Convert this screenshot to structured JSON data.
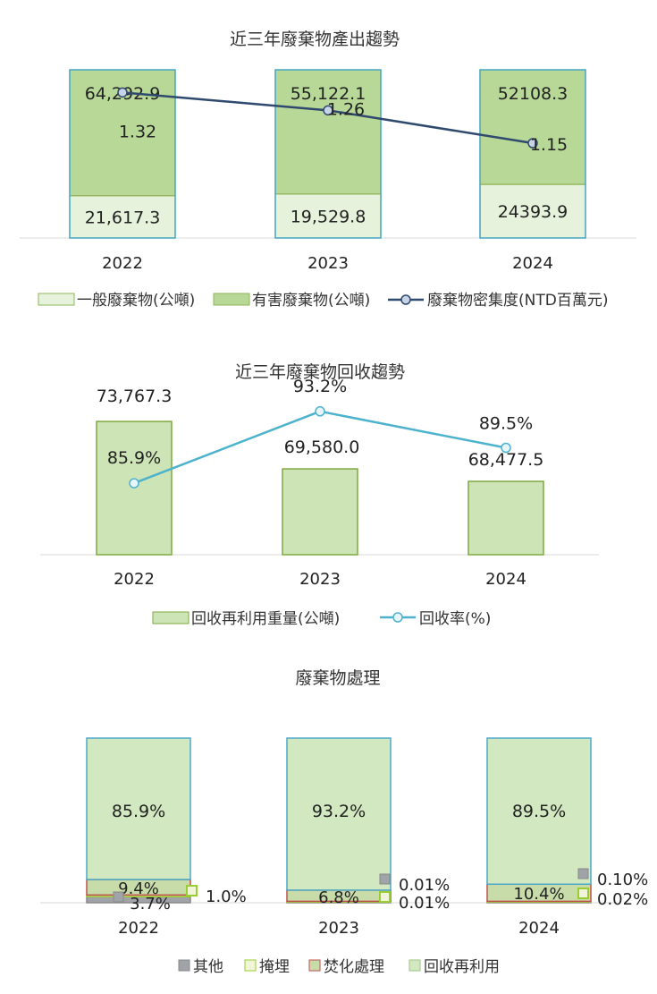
{
  "colors": {
    "general_fill": "#e6f2dc",
    "general_stroke": "#8fb55a",
    "hazardous_fill": "#b8d898",
    "frame_stroke": "#4aa8c8",
    "density_line": "#2f4a6e",
    "recycle_fill": "#cde4b6",
    "recycle_stroke": "#7fa840",
    "rate_line": "#4db3cc",
    "other_fill": "#a0a4a8",
    "landfill_fill": "#f0f5d8",
    "landfill_stroke": "#9acd32",
    "incineration_fill": "#c8dcaa",
    "incineration_stroke": "#c0504d",
    "reuse_fill": "#d2e8c0",
    "axis_line": "#d9d9d9"
  },
  "chart_data": [
    {
      "type": "bar",
      "stacked": true,
      "title": "近三年廢棄物產出趨勢",
      "categories": [
        "2022",
        "2023",
        "2024"
      ],
      "series": [
        {
          "name": "一般廢棄物(公噸)",
          "values": [
            21617.3,
            19529.8,
            24393.9
          ],
          "labels": [
            "21,617.3",
            "19,529.8",
            "24393.9"
          ]
        },
        {
          "name": "有害廢棄物(公噸)",
          "values": [
            64292.9,
            55122.1,
            52108.3
          ],
          "labels": [
            "64,292.9",
            "55,122.1",
            "52108.3"
          ]
        }
      ],
      "line_series": {
        "name": "廢棄物密集度(NTD百萬元)",
        "values": [
          1.32,
          1.26,
          1.15
        ],
        "labels": [
          "1.32",
          "1.26",
          "1.15"
        ]
      },
      "legend_position": "bottom",
      "grid": false
    },
    {
      "type": "bar",
      "title": "近三年廢棄物回收趨勢",
      "categories": [
        "2022",
        "2023",
        "2024"
      ],
      "series": [
        {
          "name": "回收再利用重量(公噸)",
          "values": [
            73767.3,
            69580.0,
            68477.5
          ],
          "labels": [
            "73,767.3",
            "69,580.0",
            "68,477.5"
          ]
        }
      ],
      "line_series": {
        "name": "回收率(%)",
        "values": [
          85.9,
          93.2,
          89.5
        ],
        "labels": [
          "85.9%",
          "93.2%",
          "89.5%"
        ]
      },
      "legend_position": "bottom",
      "grid": false
    },
    {
      "type": "bar",
      "stacked": true,
      "percent": true,
      "title": "廢棄物處理",
      "categories": [
        "2022",
        "2023",
        "2024"
      ],
      "series": [
        {
          "name": "其他",
          "values": [
            3.7,
            0.01,
            0.1
          ],
          "labels": [
            "3.7%",
            "0.01%",
            "0.10%"
          ]
        },
        {
          "name": "掩埋",
          "values": [
            1.0,
            0.01,
            0.02
          ],
          "labels": [
            "1.0%",
            "0.01%",
            "0.02%"
          ]
        },
        {
          "name": "焚化處理",
          "values": [
            9.4,
            6.8,
            10.4
          ],
          "labels": [
            "9.4%",
            "6.8%",
            "10.4%"
          ]
        },
        {
          "name": "回收再利用",
          "values": [
            85.9,
            93.2,
            89.5
          ],
          "labels": [
            "85.9%",
            "93.2%",
            "89.5%"
          ]
        }
      ],
      "legend_position": "bottom",
      "grid": false
    }
  ]
}
